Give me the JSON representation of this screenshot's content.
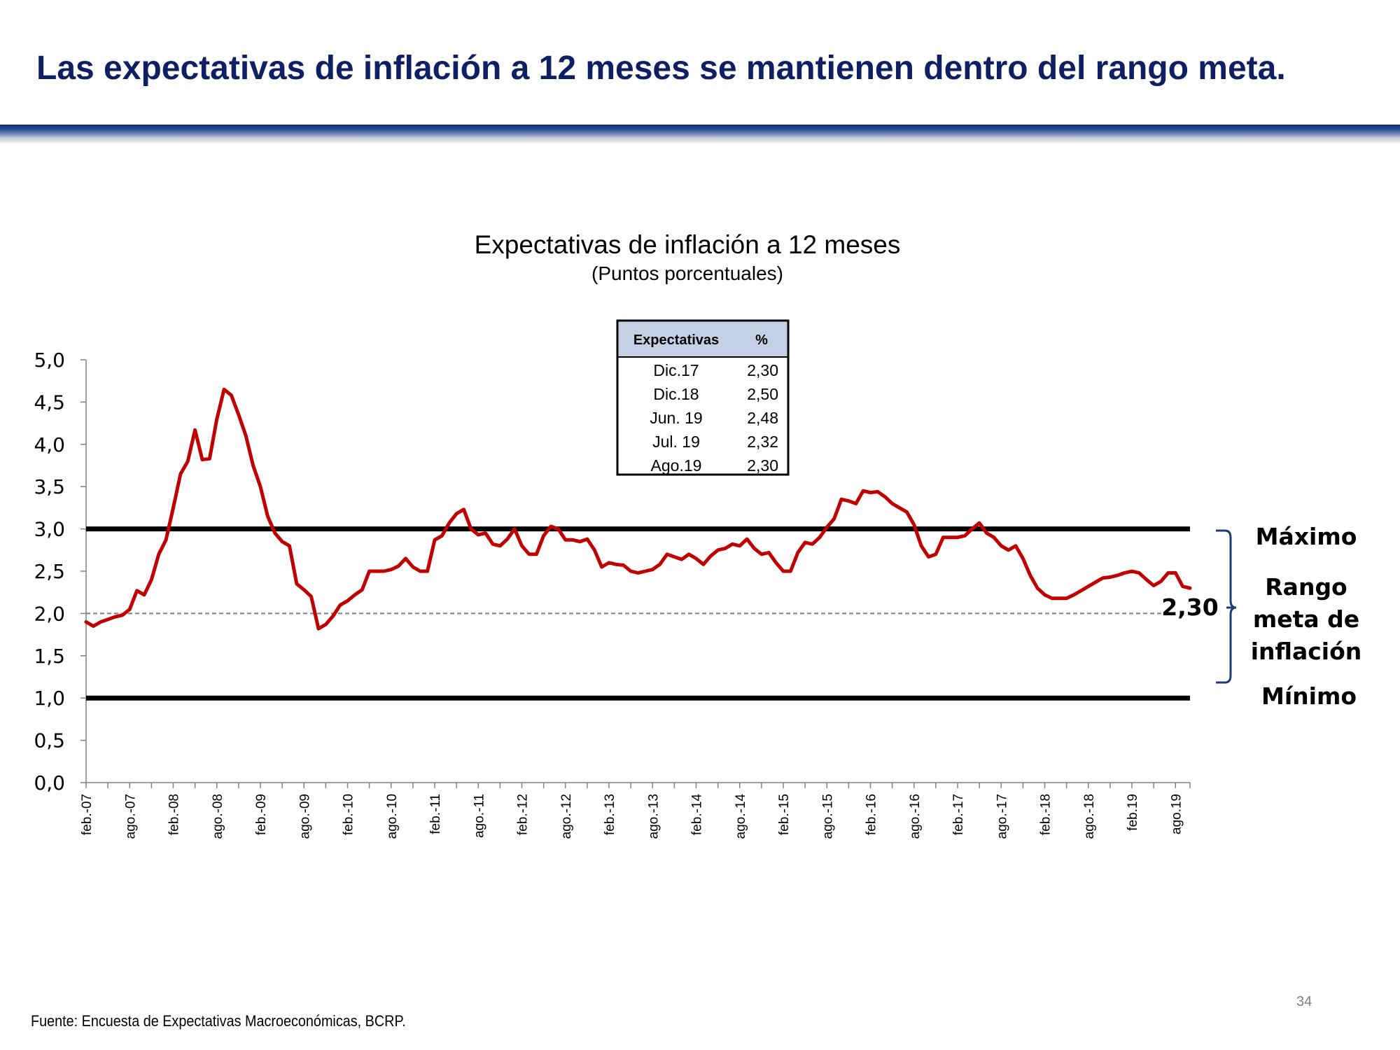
{
  "slide": {
    "title": "Las expectativas de inflación a 12 meses se mantienen dentro del rango meta.",
    "page_number": "34",
    "source": "Fuente: Encuesta de Expectativas Macroeconómicas, BCRP."
  },
  "colors": {
    "title": "#0f1f64",
    "series": "#c00000",
    "bands": "#000000",
    "target_line": "#7f7f7f",
    "bracket": "#1f3d7a",
    "table_header_bg": "#c6d0e4"
  },
  "expectations_table": {
    "headers": [
      "Expectativas",
      "%"
    ],
    "rows": [
      [
        "Dic.17",
        "2,30"
      ],
      [
        "Dic.18",
        "2,50"
      ],
      [
        "Jun. 19",
        "2,48"
      ],
      [
        "Jul. 19",
        "2,32"
      ],
      [
        "Ago.19",
        "2,30"
      ]
    ]
  },
  "range_labels": {
    "max": "Máximo",
    "range_line1": "Rango",
    "range_line2": "meta de",
    "range_line3": "inflación",
    "min": "Mínimo"
  },
  "chart_data": {
    "type": "line",
    "title": "Expectativas de inflación a 12 meses",
    "subtitle": "(Puntos porcentuales)",
    "xlabel": "",
    "ylabel": "",
    "ylim": [
      0,
      5
    ],
    "yticks": [
      "0,0",
      "0,5",
      "1,0",
      "1,5",
      "2,0",
      "2,5",
      "3,0",
      "3,5",
      "4,0",
      "4,5",
      "5,0"
    ],
    "x_tick_labels": [
      "feb.-07",
      "ago.-07",
      "feb.-08",
      "ago.-08",
      "feb.-09",
      "ago.-09",
      "feb.-10",
      "ago.-10",
      "feb.-11",
      "ago.-11",
      "feb.-12",
      "ago.-12",
      "feb.-13",
      "ago.-13",
      "feb.-14",
      "ago.-14",
      "feb.-15",
      "ago.-15",
      "feb.-16",
      "ago.-16",
      "feb.-17",
      "ago.-17",
      "feb.-18",
      "ago.-18",
      "feb.19",
      "ago.19"
    ],
    "x_start": "feb.-07",
    "x_end": "ago.19",
    "frequency": "monthly",
    "grid": false,
    "legend": "none",
    "reference_lines": [
      {
        "name": "Máximo",
        "value": 3.0,
        "style": "solid"
      },
      {
        "name": "Mínimo",
        "value": 1.0,
        "style": "solid"
      },
      {
        "name": "",
        "value": 2.0,
        "style": "dashed"
      }
    ],
    "last_value_label": "2,30",
    "series": [
      {
        "name": "",
        "values": [
          1.9,
          1.85,
          1.9,
          1.93,
          1.96,
          1.98,
          2.05,
          2.27,
          2.22,
          2.4,
          2.7,
          2.87,
          3.25,
          3.65,
          3.8,
          4.17,
          3.82,
          3.83,
          4.3,
          4.65,
          4.58,
          4.35,
          4.1,
          3.75,
          3.5,
          3.15,
          2.95,
          2.85,
          2.8,
          2.35,
          2.28,
          2.2,
          1.82,
          1.87,
          1.97,
          2.1,
          2.15,
          2.22,
          2.28,
          2.5,
          2.5,
          2.5,
          2.52,
          2.56,
          2.65,
          2.55,
          2.5,
          2.5,
          2.87,
          2.92,
          3.07,
          3.18,
          3.23,
          3.0,
          2.93,
          2.95,
          2.82,
          2.8,
          2.88,
          3.0,
          2.8,
          2.7,
          2.7,
          2.92,
          3.03,
          3.0,
          2.87,
          2.87,
          2.85,
          2.88,
          2.75,
          2.55,
          2.6,
          2.58,
          2.57,
          2.5,
          2.48,
          2.5,
          2.52,
          2.58,
          2.7,
          2.67,
          2.64,
          2.7,
          2.65,
          2.58,
          2.68,
          2.75,
          2.77,
          2.82,
          2.8,
          2.88,
          2.77,
          2.7,
          2.72,
          2.6,
          2.5,
          2.5,
          2.72,
          2.84,
          2.82,
          2.9,
          3.02,
          3.12,
          3.35,
          3.33,
          3.3,
          3.45,
          3.43,
          3.44,
          3.38,
          3.3,
          3.25,
          3.2,
          3.05,
          2.8,
          2.67,
          2.7,
          2.9,
          2.9,
          2.9,
          2.92,
          3.0,
          3.07,
          2.95,
          2.9,
          2.8,
          2.75,
          2.8,
          2.65,
          2.45,
          2.3,
          2.22,
          2.18,
          2.18,
          2.18,
          2.22,
          2.27,
          2.32,
          2.37,
          2.42,
          2.43,
          2.45,
          2.48,
          2.5,
          2.48,
          2.4,
          2.33,
          2.38,
          2.48,
          2.48,
          2.32,
          2.3
        ]
      }
    ]
  }
}
